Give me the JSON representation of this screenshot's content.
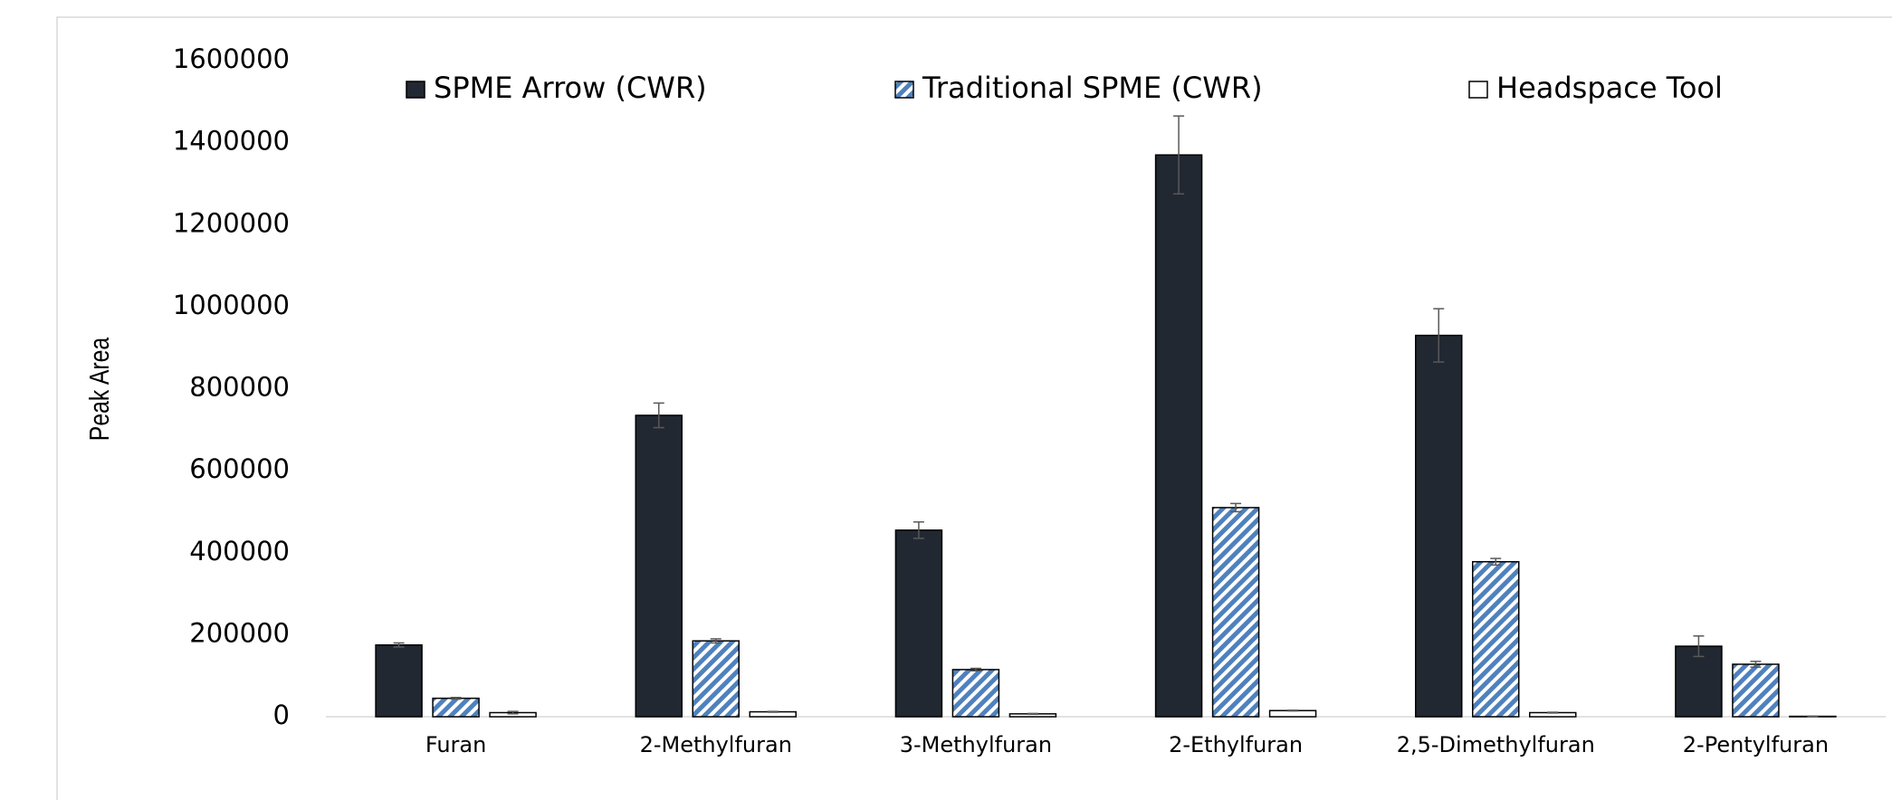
{
  "chart_data": {
    "type": "bar",
    "y_label": "Peak Area",
    "categories": [
      "Furan",
      "2-Methylfuran",
      "3-Methylfuran",
      "2-Ethylfuran",
      "2,5-Dimethylfuran",
      "2-Pentylfuran"
    ],
    "series": [
      {
        "name": "SPME Arrow (CWR)",
        "color": "#222832",
        "pattern": "solid",
        "values": [
          175000,
          735000,
          455000,
          1370000,
          930000,
          172000
        ],
        "errors": [
          5000,
          30000,
          20000,
          95000,
          65000,
          25000
        ]
      },
      {
        "name": "Traditional SPME (CWR)",
        "color": "#4f81bd",
        "pattern": "hatch",
        "values": [
          45000,
          185000,
          115000,
          510000,
          378000,
          128000
        ],
        "errors": [
          2000,
          5000,
          3000,
          10000,
          8000,
          7000
        ]
      },
      {
        "name": "Headspace Tool",
        "color": "#ffffff",
        "pattern": "solid",
        "values": [
          10000,
          12000,
          7000,
          15000,
          10000,
          1000
        ],
        "errors": [
          3000,
          1000,
          1000,
          1000,
          1000,
          500
        ]
      }
    ],
    "ylim": [
      0,
      1600000
    ],
    "yticks": [
      0,
      200000,
      400000,
      600000,
      800000,
      1000000,
      1200000,
      1400000,
      1600000
    ],
    "legend": "top",
    "grid": false
  }
}
